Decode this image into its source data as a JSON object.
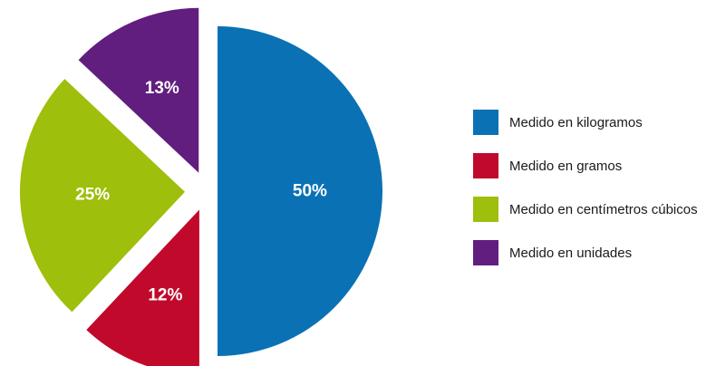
{
  "chart_data": {
    "type": "pie",
    "categories": [
      "Medido en kilogramos",
      "Medido en gramos",
      "Medido en centímetros cúbicos",
      "Medido en unidades"
    ],
    "values": [
      50,
      12,
      25,
      13
    ],
    "value_labels": [
      "50%",
      "12%",
      "25%",
      "13%"
    ],
    "colors": [
      "#0a71b5",
      "#c1092b",
      "#9ebf0b",
      "#611e7f"
    ],
    "exploded": true,
    "legend_position": "right",
    "title": ""
  }
}
